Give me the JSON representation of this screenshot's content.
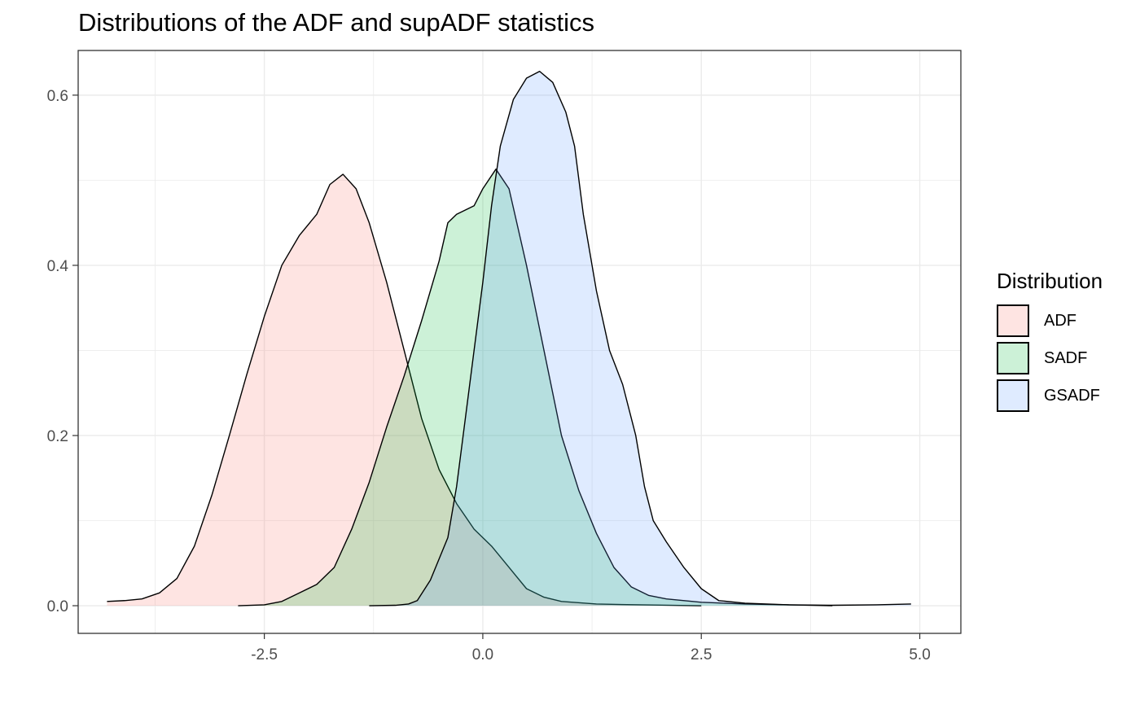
{
  "chart_data": {
    "type": "area",
    "title": "Distributions of the ADF and supADF statistics",
    "xlabel": "",
    "ylabel": "",
    "xlim": [
      -4.63,
      5.47
    ],
    "ylim": [
      -0.0325,
      0.6525
    ],
    "x_ticks": [
      -2.5,
      0.0,
      2.5,
      5.0
    ],
    "x_tick_labels": [
      "-2.5",
      "0.0",
      "2.5",
      "5.0"
    ],
    "y_ticks": [
      0.0,
      0.2,
      0.4,
      0.6
    ],
    "y_tick_labels": [
      "0.0",
      "0.2",
      "0.4",
      "0.6"
    ],
    "grid": true,
    "legend": {
      "title": "Distribution",
      "position": "right"
    },
    "series": [
      {
        "name": "ADF",
        "color": "#F8766D",
        "points": [
          [
            -4.3,
            0.005
          ],
          [
            -4.1,
            0.006
          ],
          [
            -3.9,
            0.008
          ],
          [
            -3.7,
            0.015
          ],
          [
            -3.5,
            0.032
          ],
          [
            -3.3,
            0.07
          ],
          [
            -3.1,
            0.13
          ],
          [
            -2.9,
            0.2
          ],
          [
            -2.7,
            0.272
          ],
          [
            -2.5,
            0.34
          ],
          [
            -2.3,
            0.4
          ],
          [
            -2.1,
            0.435
          ],
          [
            -1.9,
            0.46
          ],
          [
            -1.75,
            0.495
          ],
          [
            -1.6,
            0.507
          ],
          [
            -1.45,
            0.49
          ],
          [
            -1.3,
            0.45
          ],
          [
            -1.1,
            0.38
          ],
          [
            -0.9,
            0.3
          ],
          [
            -0.7,
            0.22
          ],
          [
            -0.5,
            0.16
          ],
          [
            -0.3,
            0.12
          ],
          [
            -0.1,
            0.09
          ],
          [
            0.1,
            0.07
          ],
          [
            0.3,
            0.045
          ],
          [
            0.5,
            0.02
          ],
          [
            0.7,
            0.01
          ],
          [
            0.9,
            0.005
          ],
          [
            1.3,
            0.002
          ],
          [
            1.8,
            0.001
          ],
          [
            2.5,
            0.0
          ]
        ]
      },
      {
        "name": "SADF",
        "color": "#00BA38",
        "points": [
          [
            -2.8,
            0.0
          ],
          [
            -2.5,
            0.001
          ],
          [
            -2.3,
            0.005
          ],
          [
            -2.1,
            0.015
          ],
          [
            -1.9,
            0.025
          ],
          [
            -1.7,
            0.045
          ],
          [
            -1.5,
            0.09
          ],
          [
            -1.3,
            0.145
          ],
          [
            -1.1,
            0.21
          ],
          [
            -0.9,
            0.27
          ],
          [
            -0.7,
            0.335
          ],
          [
            -0.5,
            0.405
          ],
          [
            -0.4,
            0.45
          ],
          [
            -0.3,
            0.46
          ],
          [
            -0.1,
            0.47
          ],
          [
            0.0,
            0.49
          ],
          [
            0.15,
            0.513
          ],
          [
            0.3,
            0.49
          ],
          [
            0.5,
            0.4
          ],
          [
            0.7,
            0.3
          ],
          [
            0.9,
            0.2
          ],
          [
            1.1,
            0.135
          ],
          [
            1.3,
            0.085
          ],
          [
            1.5,
            0.045
          ],
          [
            1.7,
            0.022
          ],
          [
            1.9,
            0.012
          ],
          [
            2.1,
            0.008
          ],
          [
            2.5,
            0.004
          ],
          [
            3.0,
            0.002
          ],
          [
            3.5,
            0.001
          ],
          [
            4.0,
            0.0
          ]
        ]
      },
      {
        "name": "GSADF",
        "color": "#619CFF",
        "points": [
          [
            -1.3,
            0.0
          ],
          [
            -1.0,
            0.0005
          ],
          [
            -0.85,
            0.002
          ],
          [
            -0.75,
            0.006
          ],
          [
            -0.6,
            0.03
          ],
          [
            -0.4,
            0.08
          ],
          [
            -0.3,
            0.14
          ],
          [
            -0.2,
            0.22
          ],
          [
            -0.1,
            0.3
          ],
          [
            0.0,
            0.38
          ],
          [
            0.1,
            0.47
          ],
          [
            0.2,
            0.54
          ],
          [
            0.35,
            0.595
          ],
          [
            0.5,
            0.62
          ],
          [
            0.65,
            0.628
          ],
          [
            0.8,
            0.615
          ],
          [
            0.95,
            0.58
          ],
          [
            1.05,
            0.54
          ],
          [
            1.15,
            0.46
          ],
          [
            1.3,
            0.37
          ],
          [
            1.45,
            0.3
          ],
          [
            1.6,
            0.26
          ],
          [
            1.75,
            0.2
          ],
          [
            1.85,
            0.14
          ],
          [
            1.95,
            0.1
          ],
          [
            2.1,
            0.075
          ],
          [
            2.3,
            0.045
          ],
          [
            2.5,
            0.02
          ],
          [
            2.7,
            0.006
          ],
          [
            3.0,
            0.003
          ],
          [
            3.5,
            0.001
          ],
          [
            4.0,
            0.0005
          ],
          [
            4.5,
            0.001
          ],
          [
            4.9,
            0.002
          ]
        ]
      }
    ]
  }
}
